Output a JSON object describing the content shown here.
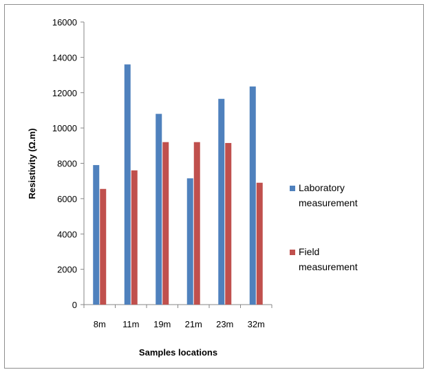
{
  "chart_data": {
    "type": "bar",
    "title": "",
    "xlabel": "Samples locations",
    "ylabel": "Resistivity (Ω.m)",
    "categories": [
      "8m",
      "11m",
      "19m",
      "21m",
      "23m",
      "32m"
    ],
    "ylim": [
      0,
      16000
    ],
    "yticks": [
      "0",
      "2000",
      "4000",
      "6000",
      "8000",
      "10000",
      "12000",
      "14000",
      "16000"
    ],
    "grid": false,
    "legend_position": "right",
    "series": [
      {
        "name_lines": [
          "Laboratory",
          "measurement"
        ],
        "color": "#4f81bd",
        "values": [
          7900,
          13600,
          10800,
          7150,
          11650,
          12350
        ]
      },
      {
        "name_lines": [
          "Field",
          "measurement"
        ],
        "color": "#c0504d",
        "values": [
          6550,
          7600,
          9200,
          9200,
          9150,
          6900
        ]
      }
    ]
  }
}
